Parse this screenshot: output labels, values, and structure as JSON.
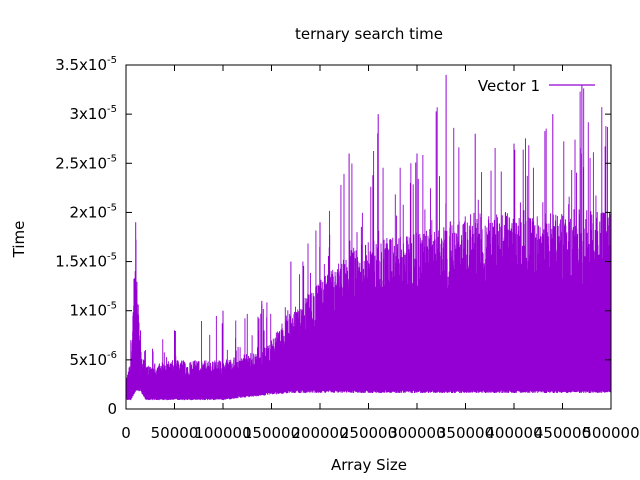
{
  "chart_data": {
    "type": "line",
    "title": "ternary search time",
    "xlabel": "Array Size",
    "ylabel": "Time",
    "xlim": [
      0,
      500000
    ],
    "ylim": [
      0,
      3.5e-05
    ],
    "x_ticks": [
      {
        "value": 0,
        "label": "0"
      },
      {
        "value": 50000,
        "label": "50000"
      },
      {
        "value": 100000,
        "label": "100000"
      },
      {
        "value": 150000,
        "label": "150000"
      },
      {
        "value": 200000,
        "label": "200000"
      },
      {
        "value": 250000,
        "label": "250000"
      },
      {
        "value": 300000,
        "label": "300000"
      },
      {
        "value": 350000,
        "label": "350000"
      },
      {
        "value": 400000,
        "label": "400000"
      },
      {
        "value": 450000,
        "label": "450000"
      },
      {
        "value": 500000,
        "label": "500000"
      }
    ],
    "y_ticks": [
      {
        "value": 0,
        "base": "0",
        "exp": ""
      },
      {
        "value": 5e-06,
        "base": "5x10",
        "exp": "-6"
      },
      {
        "value": 1e-05,
        "base": "1x10",
        "exp": "-5"
      },
      {
        "value": 1.5e-05,
        "base": "1.5x10",
        "exp": "-5"
      },
      {
        "value": 2e-05,
        "base": "2x10",
        "exp": "-5"
      },
      {
        "value": 2.5e-05,
        "base": "2.5x10",
        "exp": "-5"
      },
      {
        "value": 3e-05,
        "base": "3x10",
        "exp": "-5"
      },
      {
        "value": 3.5e-05,
        "base": "3.5x10",
        "exp": "-5"
      }
    ],
    "legend": {
      "position": "top-right"
    },
    "grid": false,
    "series": [
      {
        "name": "Vector 1",
        "color": "#9400D3",
        "envelope": [
          {
            "x": 0,
            "low": 1e-06,
            "high": 3e-06,
            "spike": 5e-06
          },
          {
            "x": 5000,
            "low": 1e-06,
            "high": 5e-06,
            "spike": 7e-06
          },
          {
            "x": 10000,
            "low": 2e-06,
            "high": 1.6e-05,
            "spike": 1.9e-05
          },
          {
            "x": 15000,
            "low": 2e-06,
            "high": 6e-06,
            "spike": 8e-06
          },
          {
            "x": 20000,
            "low": 1e-06,
            "high": 4.5e-06,
            "spike": 6e-06
          },
          {
            "x": 50000,
            "low": 1e-06,
            "high": 5e-06,
            "spike": 8e-06
          },
          {
            "x": 100000,
            "low": 1e-06,
            "high": 5e-06,
            "spike": 1e-05
          },
          {
            "x": 140000,
            "low": 1.5e-06,
            "high": 6e-06,
            "spike": 1.1e-05
          },
          {
            "x": 170000,
            "low": 1.8e-06,
            "high": 1e-05,
            "spike": 1.5e-05
          },
          {
            "x": 200000,
            "low": 1.8e-06,
            "high": 1.3e-05,
            "spike": 1.9e-05
          },
          {
            "x": 230000,
            "low": 1.8e-06,
            "high": 1.6e-05,
            "spike": 2.6e-05
          },
          {
            "x": 260000,
            "low": 1.8e-06,
            "high": 1.75e-05,
            "spike": 3e-05
          },
          {
            "x": 300000,
            "low": 1.8e-06,
            "high": 1.8e-05,
            "spike": 2.6e-05
          },
          {
            "x": 330000,
            "low": 1.8e-06,
            "high": 1.9e-05,
            "spike": 3.4e-05
          },
          {
            "x": 360000,
            "low": 1.8e-06,
            "high": 2e-05,
            "spike": 2.8e-05
          },
          {
            "x": 400000,
            "low": 1.8e-06,
            "high": 2e-05,
            "spike": 2.7e-05
          },
          {
            "x": 440000,
            "low": 1.8e-06,
            "high": 2e-05,
            "spike": 3e-05
          },
          {
            "x": 470000,
            "low": 1.8e-06,
            "high": 2.05e-05,
            "spike": 3.3e-05
          },
          {
            "x": 500000,
            "low": 1.8e-06,
            "high": 2.05e-05,
            "spike": 3.1e-05
          }
        ]
      }
    ]
  }
}
